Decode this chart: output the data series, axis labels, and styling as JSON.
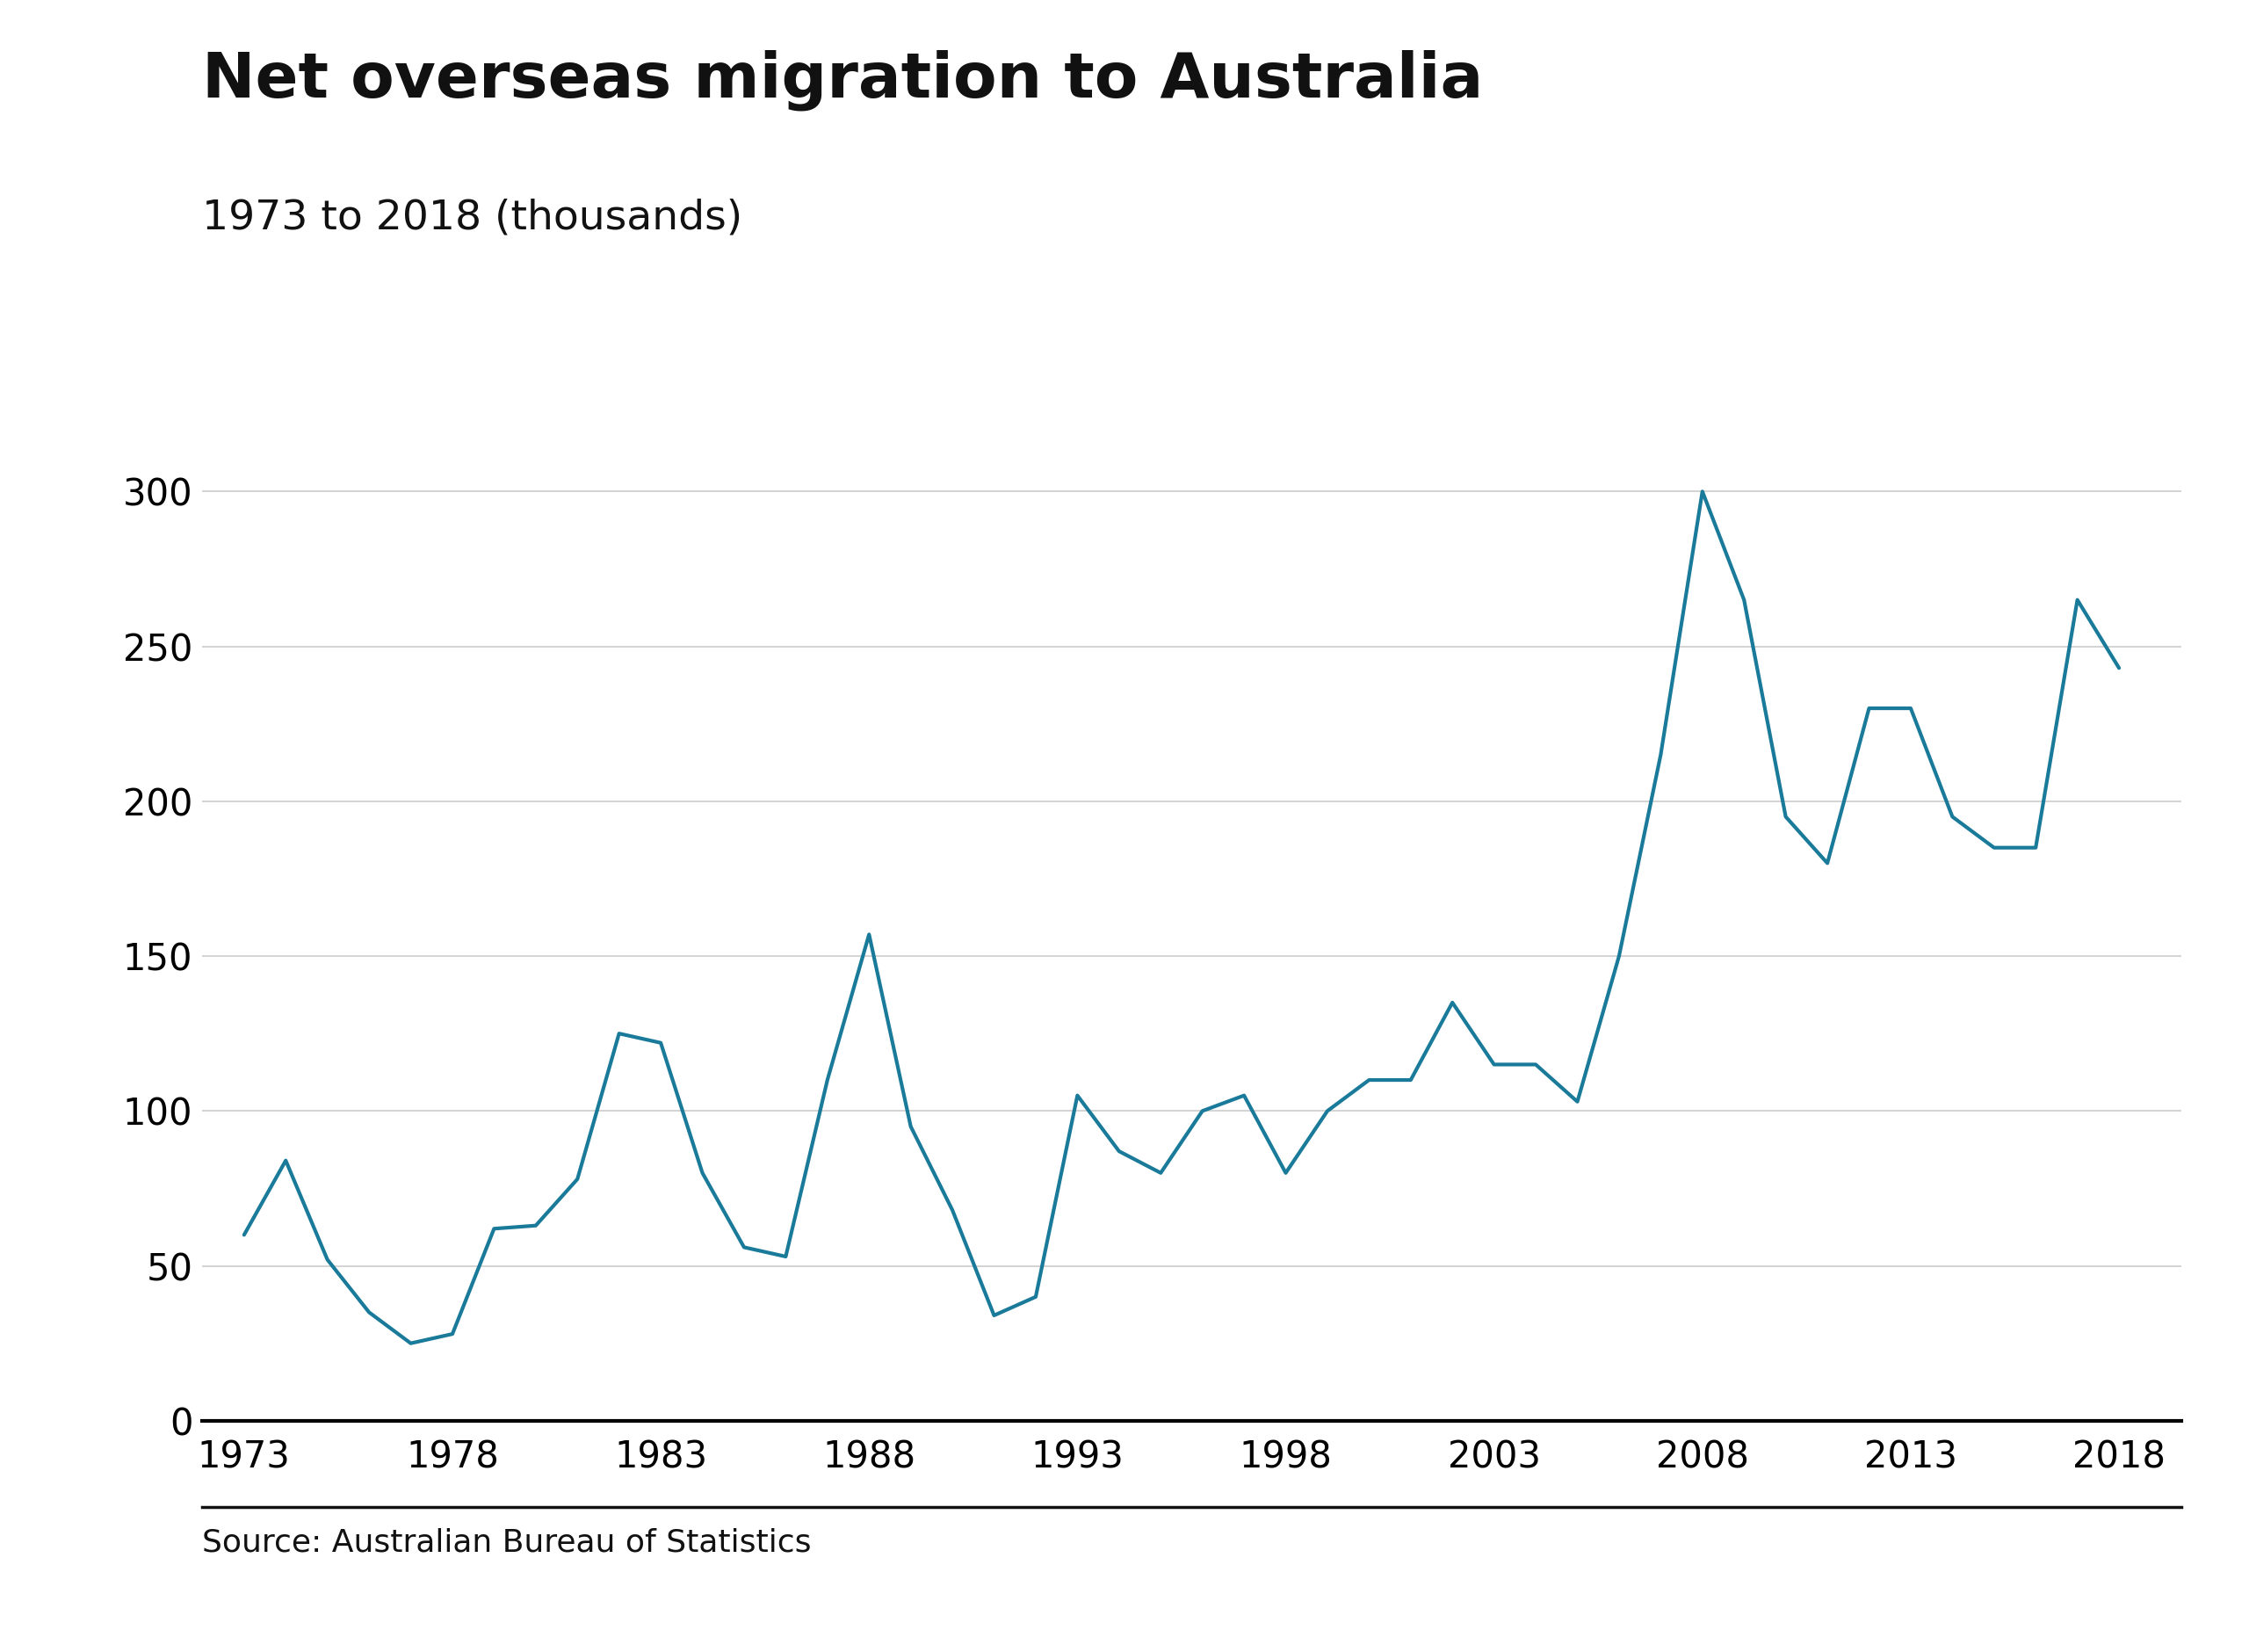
{
  "title": "Net overseas migration to Australia",
  "subtitle": "1973 to 2018 (thousands)",
  "source": "Source: Australian Bureau of Statistics",
  "line_color": "#1a7a9a",
  "background_color": "#ffffff",
  "years": [
    1973,
    1974,
    1975,
    1976,
    1977,
    1978,
    1979,
    1980,
    1981,
    1982,
    1983,
    1984,
    1985,
    1986,
    1987,
    1988,
    1989,
    1990,
    1991,
    1992,
    1993,
    1994,
    1995,
    1996,
    1997,
    1998,
    1999,
    2000,
    2001,
    2002,
    2003,
    2004,
    2005,
    2006,
    2007,
    2008,
    2009,
    2010,
    2011,
    2012,
    2013,
    2014,
    2015,
    2016,
    2017,
    2018
  ],
  "values": [
    60,
    84,
    52,
    35,
    25,
    28,
    62,
    63,
    78,
    125,
    122,
    80,
    56,
    53,
    110,
    157,
    95,
    68,
    34,
    40,
    105,
    87,
    80,
    100,
    105,
    80,
    100,
    110,
    110,
    135,
    115,
    115,
    103,
    150,
    215,
    300,
    265,
    195,
    180,
    230,
    230,
    195,
    185,
    185,
    265,
    243
  ],
  "xticks": [
    1973,
    1978,
    1983,
    1988,
    1993,
    1998,
    2003,
    2008,
    2013,
    2018
  ],
  "yticks": [
    0,
    50,
    100,
    150,
    200,
    250,
    300
  ],
  "ylim": [
    0,
    320
  ],
  "xlim": [
    1972,
    2019.5
  ],
  "title_fontsize": 52,
  "subtitle_fontsize": 34,
  "tick_fontsize": 30,
  "source_fontsize": 26,
  "line_width": 3.0,
  "grid_color": "#cccccc",
  "axis_color": "#000000",
  "bbc_bg": "#404040",
  "bbc_text": "#ffffff"
}
